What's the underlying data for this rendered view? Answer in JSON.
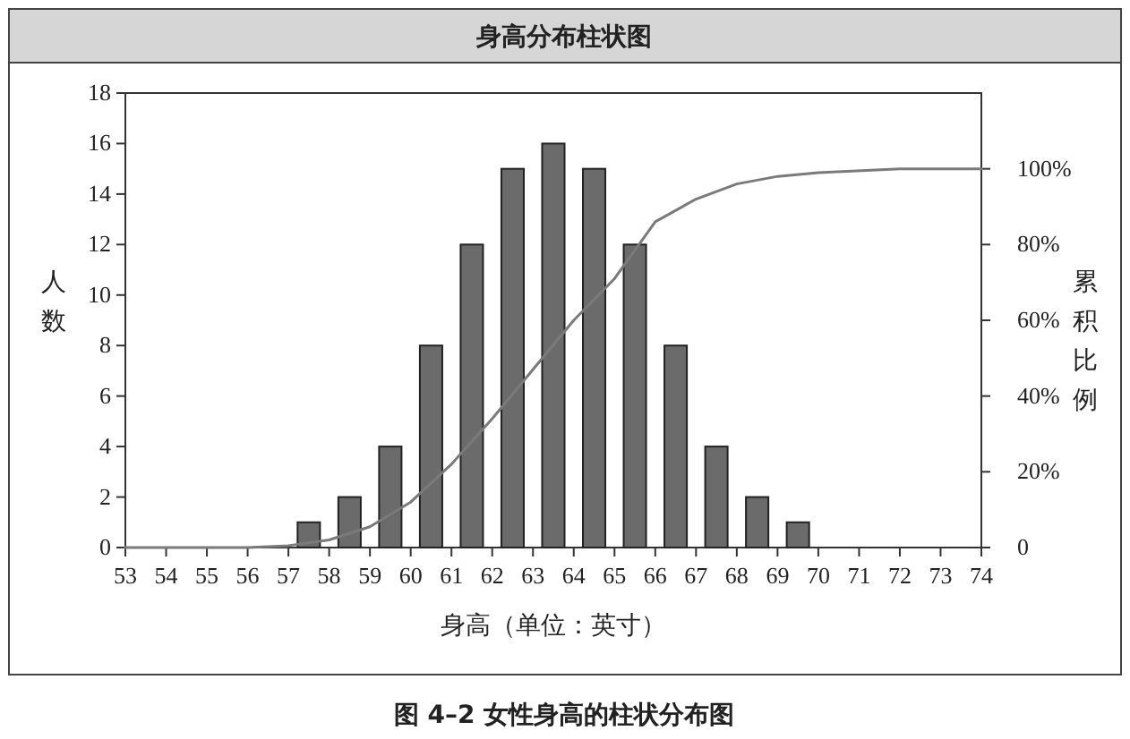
{
  "chart_data": {
    "type": "histogram",
    "title": "身高分布柱状图",
    "xlabel": "身高（单位：英寸）",
    "ylabel": "人数",
    "y2label": "累积比例",
    "annotations": [
      "图 4–2   女性身高的柱状分布图"
    ],
    "bins": [
      53,
      54,
      55,
      56,
      57,
      58,
      59,
      60,
      61,
      62,
      63,
      64,
      65,
      66,
      67,
      68,
      69,
      70,
      71,
      72,
      73,
      74
    ],
    "values": [
      0,
      0,
      0,
      0,
      1,
      2,
      4,
      8,
      12,
      15,
      16,
      15,
      12,
      8,
      4,
      2,
      1,
      0,
      0,
      0,
      0
    ],
    "color": "#6b6b6b",
    "series": [
      {
        "type": "line",
        "axis": "y2",
        "color": "#7a7a7a",
        "x": [
          53,
          54,
          55,
          56,
          57,
          58,
          59,
          60,
          61,
          62,
          63,
          64,
          65,
          66,
          67,
          68,
          69,
          70,
          72,
          74
        ],
        "values": [
          0,
          0,
          0,
          0,
          0.5,
          2,
          5.5,
          12,
          22,
          34,
          47,
          60,
          71,
          86,
          92,
          96,
          98,
          99,
          100,
          100
        ]
      }
    ],
    "xlim": [
      53,
      74
    ],
    "xticks": [
      53,
      54,
      55,
      56,
      57,
      58,
      59,
      60,
      61,
      62,
      63,
      64,
      65,
      66,
      67,
      68,
      69,
      70,
      71,
      72,
      73,
      74
    ],
    "ylim": [
      0,
      18
    ],
    "yticks": [
      0,
      2,
      4,
      6,
      8,
      10,
      12,
      14,
      16,
      18
    ],
    "y2lim": [
      0,
      120
    ],
    "y2ticks": [
      0,
      {
        "value": 20,
        "label": "20%"
      },
      {
        "value": 40,
        "label": "40%"
      },
      {
        "value": 60,
        "label": "60%"
      },
      {
        "value": 80,
        "label": "80%"
      },
      {
        "value": 100,
        "label": "100%"
      }
    ],
    "grid": false,
    "marker": "none",
    "line_style": "solid"
  }
}
